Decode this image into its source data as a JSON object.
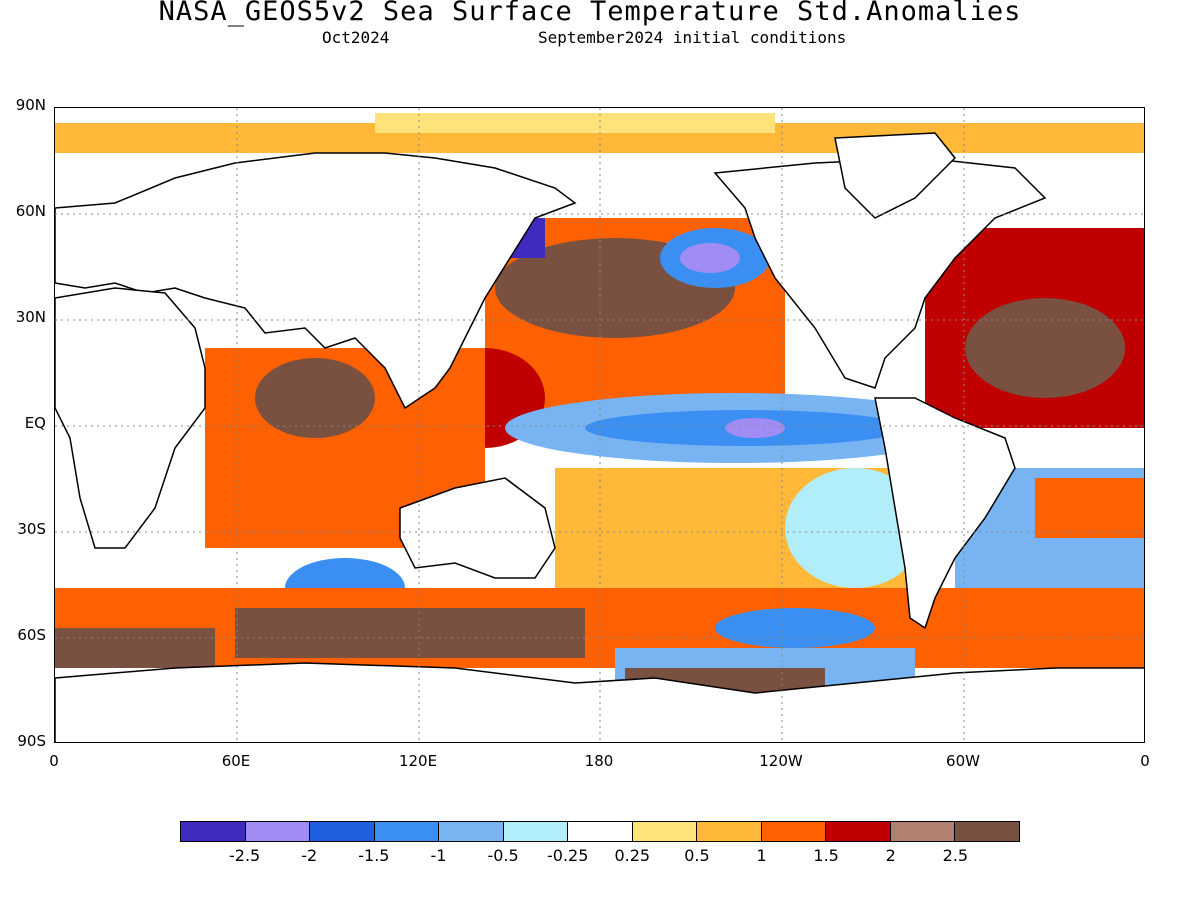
{
  "title": "NASA_GEOS5v2 Sea Surface Temperature Std.Anomalies",
  "subtitle_left": "Oct2024",
  "subtitle_right": "September2024 initial conditions",
  "lat_labels": [
    "90N",
    "60N",
    "30N",
    "EQ",
    "30S",
    "60S",
    "90S"
  ],
  "lon_labels": [
    "0",
    "60E",
    "120E",
    "180",
    "120W",
    "60W",
    "0"
  ],
  "colorbar": {
    "colors": [
      "#3f2bbf",
      "#a08cf2",
      "#2060e0",
      "#3c8ff2",
      "#78b4f2",
      "#b2eefa",
      "#ffffff",
      "#ffe27a",
      "#ffb838",
      "#ff6000",
      "#c00000",
      "#b08070",
      "#7a5040"
    ],
    "labels": [
      "-2.5",
      "-2",
      "-1.5",
      "-1",
      "-0.5",
      "-0.25",
      "0.25",
      "0.5",
      "1",
      "1.5",
      "2",
      "2.5"
    ]
  },
  "map_fields": {
    "land_color": "#ffffff",
    "ocean_base": "#ffffff"
  }
}
